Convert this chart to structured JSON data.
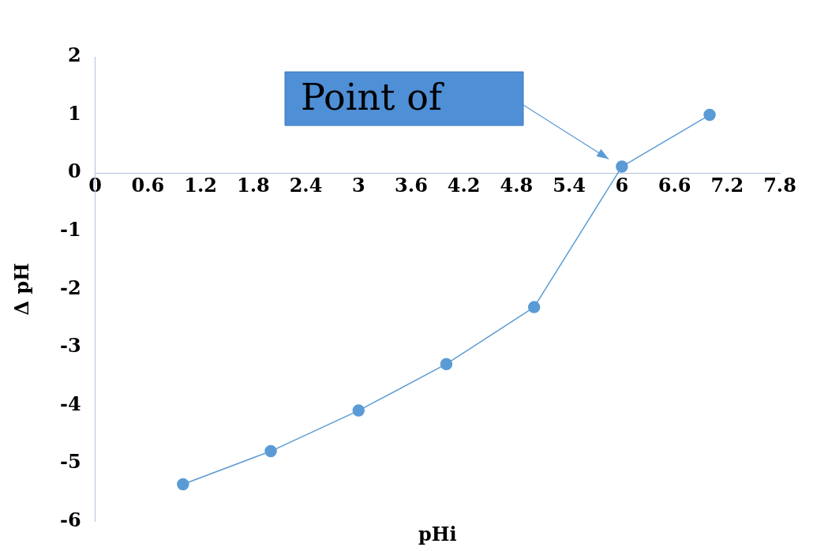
{
  "chart_data": {
    "type": "line",
    "xlabel": "pHi",
    "ylabel": "Δ pH",
    "x": [
      1,
      2,
      3,
      4,
      5,
      6,
      7
    ],
    "series": [
      {
        "color": "#5b9bd5",
        "values": [
          -5.36,
          -4.79,
          -4.09,
          -3.29,
          -2.31,
          0.11,
          1.0
        ]
      }
    ],
    "xlim": [
      0,
      7.8
    ],
    "xticks": [
      0,
      0.6,
      1.2,
      1.8,
      2.4,
      3,
      3.6,
      4.2,
      4.8,
      5.4,
      6,
      6.6,
      7.2,
      7.8
    ],
    "ylim": [
      -6,
      2
    ],
    "yticks": [
      -6,
      -5,
      -4,
      -3,
      -2,
      -1,
      0,
      1,
      2
    ],
    "grid": false,
    "legend": false,
    "marker": "circle",
    "line_style": "solid",
    "annotations": [
      "Point of"
    ]
  }
}
